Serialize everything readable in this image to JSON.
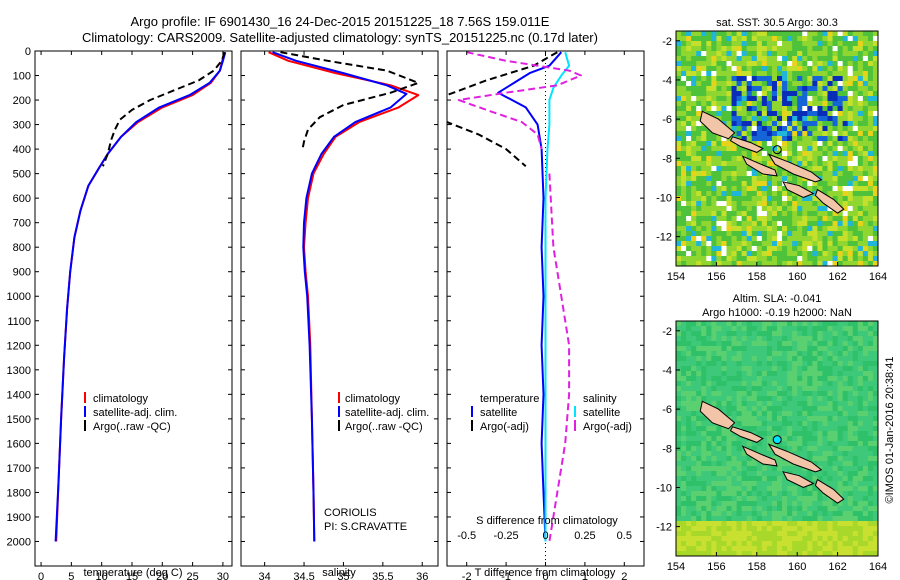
{
  "header": {
    "title_line1": "Argo profile: IF 6901430_16 24-Dec-2015 20151225_18 7.56S 159.011E",
    "title_line2": "Climatology: CARS2009. Satellite-adjusted climatology: synTS_20151225.nc (0.17d later)"
  },
  "colors": {
    "climatology": "#ff0000",
    "satellite": "#0000ff",
    "argo": "#000000",
    "salinity_satellite": "#00e5ff",
    "salinity_argo": "#e020e0",
    "land": "#f2c4a8"
  },
  "chart_data": [
    {
      "type": "line",
      "name": "temperature-profile",
      "xlabel": "temperature (deg C)",
      "xlim": [
        -1,
        31.5
      ],
      "ylim": [
        2100,
        0
      ],
      "xticks": [
        0,
        5,
        10,
        15,
        20,
        25,
        30
      ],
      "yticks": [
        0,
        100,
        200,
        300,
        400,
        500,
        600,
        700,
        800,
        900,
        1000,
        1100,
        1200,
        1300,
        1400,
        1500,
        1600,
        1700,
        1800,
        1900,
        2000
      ],
      "legend": [
        "climatology",
        "satellite-adj. clim.",
        "Argo(..raw -QC)"
      ],
      "legend_position": "bottom-right",
      "series": [
        {
          "name": "climatology",
          "style": "solid",
          "color": "#ff0000",
          "points": [
            [
              30.2,
              5
            ],
            [
              29.9,
              40
            ],
            [
              29.5,
              80
            ],
            [
              28,
              130
            ],
            [
              25,
              180
            ],
            [
              20,
              230
            ],
            [
              16,
              290
            ],
            [
              13.2,
              350
            ],
            [
              11,
              420
            ],
            [
              9.5,
              480
            ],
            [
              7.8,
              550
            ],
            [
              6.5,
              650
            ],
            [
              5.5,
              760
            ],
            [
              4.8,
              900
            ],
            [
              4.3,
              1050
            ],
            [
              3.8,
              1250
            ],
            [
              3.3,
              1500
            ],
            [
              2.9,
              1750
            ],
            [
              2.5,
              2000
            ]
          ]
        },
        {
          "name": "satellite-adj. clim.",
          "style": "solid",
          "color": "#0000ff",
          "points": [
            [
              30.4,
              5
            ],
            [
              30,
              40
            ],
            [
              29.5,
              80
            ],
            [
              27.8,
              130
            ],
            [
              24.5,
              180
            ],
            [
              19.5,
              230
            ],
            [
              15.7,
              290
            ],
            [
              13.2,
              350
            ],
            [
              11,
              420
            ],
            [
              9.5,
              480
            ],
            [
              7.8,
              550
            ],
            [
              6.5,
              650
            ],
            [
              5.5,
              760
            ],
            [
              4.8,
              900
            ],
            [
              4.3,
              1050
            ],
            [
              3.8,
              1250
            ],
            [
              3.3,
              1500
            ],
            [
              2.9,
              1750
            ],
            [
              2.4,
              2000
            ]
          ]
        },
        {
          "name": "Argo(..raw -QC)",
          "style": "dashed",
          "color": "#000000",
          "points": [
            [
              30.3,
              5
            ],
            [
              29.8,
              40
            ],
            [
              28.5,
              80
            ],
            [
              26,
              120
            ],
            [
              22,
              160
            ],
            [
              18,
              200
            ],
            [
              15,
              240
            ],
            [
              13,
              280
            ],
            [
              12.2,
              320
            ],
            [
              11.6,
              360
            ],
            [
              11,
              420
            ],
            [
              10.2,
              470
            ]
          ]
        }
      ]
    },
    {
      "type": "line",
      "name": "salinity-profile",
      "xlabel": "salinity",
      "xlim": [
        33.7,
        36.2
      ],
      "ylim": [
        2100,
        0
      ],
      "xticks": [
        34,
        34.5,
        35,
        35.5,
        36
      ],
      "legend": [
        "climatology",
        "satellite-adj. clim.",
        "Argo(..raw -QC)"
      ],
      "legend_position": "bottom-right",
      "annotations": [
        "CORIOLIS",
        "PI: S.CRAVATTE"
      ],
      "series": [
        {
          "name": "climatology",
          "style": "solid",
          "color": "#ff0000",
          "points": [
            [
              34.05,
              5
            ],
            [
              34.3,
              40
            ],
            [
              34.9,
              90
            ],
            [
              35.6,
              140
            ],
            [
              35.95,
              180
            ],
            [
              35.7,
              230
            ],
            [
              35.2,
              290
            ],
            [
              34.9,
              350
            ],
            [
              34.75,
              420
            ],
            [
              34.62,
              500
            ],
            [
              34.55,
              600
            ],
            [
              34.52,
              700
            ],
            [
              34.5,
              800
            ],
            [
              34.52,
              900
            ],
            [
              34.55,
              1000
            ],
            [
              34.58,
              1200
            ],
            [
              34.6,
              1500
            ],
            [
              34.62,
              1800
            ],
            [
              34.63,
              2000
            ]
          ]
        },
        {
          "name": "satellite-adj. clim.",
          "style": "solid",
          "color": "#0000ff",
          "points": [
            [
              34.1,
              5
            ],
            [
              34.4,
              40
            ],
            [
              35,
              90
            ],
            [
              35.55,
              140
            ],
            [
              35.8,
              175
            ],
            [
              35.6,
              230
            ],
            [
              35.15,
              290
            ],
            [
              34.88,
              350
            ],
            [
              34.72,
              420
            ],
            [
              34.6,
              500
            ],
            [
              34.53,
              600
            ],
            [
              34.5,
              700
            ],
            [
              34.49,
              800
            ],
            [
              34.51,
              900
            ],
            [
              34.54,
              1000
            ],
            [
              34.57,
              1200
            ],
            [
              34.6,
              1500
            ],
            [
              34.62,
              1800
            ],
            [
              34.63,
              2000
            ]
          ]
        },
        {
          "name": "Argo(..raw -QC)",
          "style": "dashed",
          "color": "#000000",
          "points": [
            [
              34.2,
              5
            ],
            [
              34.8,
              40
            ],
            [
              35.55,
              80
            ],
            [
              35.95,
              130
            ],
            [
              35.6,
              170
            ],
            [
              35,
              220
            ],
            [
              34.7,
              270
            ],
            [
              34.55,
              320
            ],
            [
              34.5,
              370
            ],
            [
              34.48,
              400
            ]
          ]
        }
      ]
    },
    {
      "type": "line",
      "name": "difference-profile",
      "xlabel": "T difference from climatology",
      "xlabel_top": "S difference from climatology",
      "xlim": [
        -2.5,
        2.5
      ],
      "ylim": [
        2100,
        0
      ],
      "xticks": [
        -2,
        -1,
        0,
        1,
        2
      ],
      "xticks_top": [
        "-0.5",
        "-0.25",
        "0",
        "0.25",
        "0.5"
      ],
      "legend_headers": [
        "temperature",
        "salinity"
      ],
      "legend": [
        "satellite",
        "Argo(-adj)",
        "satellite",
        "Argo(-adj)"
      ],
      "legend_position": "bottom",
      "series": [
        {
          "name": "temperature satellite",
          "style": "solid",
          "color": "#0000ff",
          "points": [
            [
              0.4,
              5
            ],
            [
              0.1,
              60
            ],
            [
              -0.4,
              90
            ],
            [
              -0.8,
              130
            ],
            [
              -1.2,
              170
            ],
            [
              -0.5,
              230
            ],
            [
              -0.2,
              300
            ],
            [
              -0.1,
              400
            ],
            [
              -0.05,
              600
            ],
            [
              -0.1,
              800
            ],
            [
              -0.05,
              1000
            ],
            [
              -0.1,
              1200
            ],
            [
              -0.05,
              1400
            ],
            [
              -0.1,
              1600
            ],
            [
              -0.05,
              1800
            ],
            [
              0,
              2000
            ]
          ]
        },
        {
          "name": "temperature Argo(-adj)",
          "style": "dashed",
          "color": "#000000",
          "points": [
            [
              0.3,
              5
            ],
            [
              -0.3,
              60
            ],
            [
              -1.5,
              120
            ],
            [
              -2.5,
              180
            ],
            [
              -3,
              240
            ],
            [
              -2.5,
              290
            ],
            [
              -1.7,
              340
            ],
            [
              -1,
              400
            ],
            [
              -0.5,
              470
            ]
          ]
        },
        {
          "name": "salinity satellite",
          "style": "solid",
          "color": "#00e5ff",
          "points": [
            [
              0.5,
              5
            ],
            [
              0.6,
              60
            ],
            [
              0.4,
              100
            ],
            [
              0.2,
              150
            ],
            [
              0.1,
              200
            ],
            [
              0.1,
              300
            ],
            [
              0.05,
              400
            ],
            [
              0,
              600
            ],
            [
              0,
              2000
            ]
          ]
        },
        {
          "name": "salinity Argo(-adj)",
          "style": "dashed",
          "color": "#e020e0",
          "points": [
            [
              -2,
              5
            ],
            [
              -1,
              40
            ],
            [
              0.6,
              80
            ],
            [
              0.9,
              100
            ],
            [
              0.3,
              140
            ],
            [
              -1,
              170
            ],
            [
              -2.2,
              200
            ],
            [
              -1.5,
              240
            ],
            [
              -0.6,
              290
            ],
            [
              -0.2,
              340
            ],
            [
              -0.1,
              400
            ]
          ]
        },
        {
          "name": "salinity climatology diff",
          "style": "dashed",
          "color": "#e020e0",
          "points": [
            [
              0.1,
              500
            ],
            [
              0.2,
              800
            ],
            [
              0.4,
              1000
            ],
            [
              0.6,
              1200
            ],
            [
              0.6,
              1400
            ],
            [
              0.5,
              1600
            ],
            [
              0.3,
              1800
            ],
            [
              0.1,
              2000
            ]
          ]
        }
      ]
    },
    {
      "type": "heatmap",
      "name": "sst-map",
      "title": "sat. SST: 30.5 Argo: 30.3",
      "xlim": [
        154,
        164
      ],
      "ylim": [
        -13.5,
        -1.5
      ],
      "xticks": [
        154,
        156,
        158,
        160,
        162,
        164
      ],
      "yticks": [
        -2,
        -4,
        -6,
        -8,
        -10,
        -12
      ],
      "argo_position": [
        159.011,
        -7.56
      ]
    },
    {
      "type": "heatmap",
      "name": "sla-map",
      "title_line1": "Altim. SLA: -0.041",
      "title_line2": "Argo h1000: -0.19 h2000: NaN",
      "xlim": [
        154,
        164
      ],
      "ylim": [
        -13.5,
        -1.5
      ],
      "xticks": [
        154,
        156,
        158,
        160,
        162,
        164
      ],
      "yticks": [
        -2,
        -4,
        -6,
        -8,
        -10,
        -12
      ],
      "argo_position": [
        159.011,
        -7.56
      ]
    }
  ],
  "footer": {
    "credit": "©IMOS 01-Jan-2016 20:38:41"
  }
}
